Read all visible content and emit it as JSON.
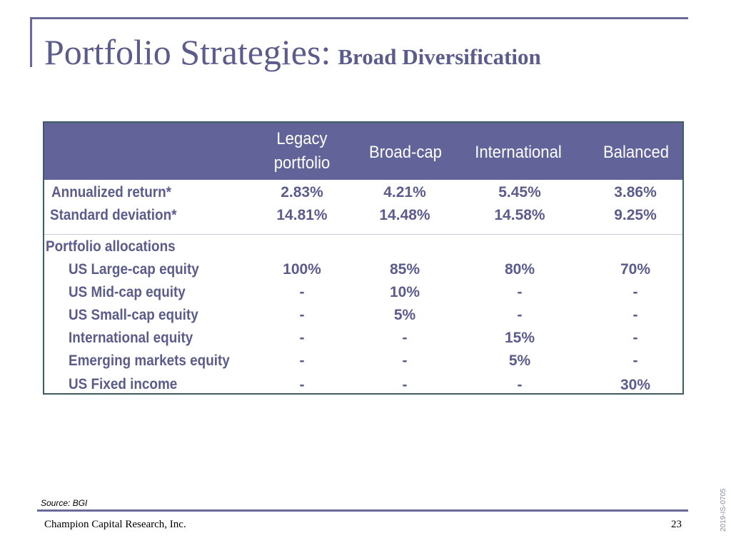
{
  "title": {
    "main": "Portfolio Strategies:",
    "sub": "Broad Diversification"
  },
  "table": {
    "columns": [
      "Legacy portfolio",
      "Broad-cap",
      "International",
      "Balanced"
    ],
    "stats": [
      {
        "label": "Annualized return*",
        "values": [
          "2.83%",
          "4.21%",
          "5.45%",
          "3.86%"
        ]
      },
      {
        "label": "Standard deviation*",
        "values": [
          "14.81%",
          "14.48%",
          "14.58%",
          "9.25%"
        ]
      }
    ],
    "section_label": "Portfolio allocations",
    "allocations": [
      {
        "label": "US Large-cap equity",
        "values": [
          "100%",
          "85%",
          "80%",
          "70%"
        ]
      },
      {
        "label": "US Mid-cap equity",
        "values": [
          "-",
          "10%",
          "-",
          "-"
        ]
      },
      {
        "label": "US Small-cap equity",
        "values": [
          "-",
          "5%",
          "-",
          "-"
        ]
      },
      {
        "label": "International equity",
        "values": [
          "-",
          "-",
          "15%",
          "-"
        ]
      },
      {
        "label": "Emerging markets equity",
        "values": [
          "-",
          "-",
          "5%",
          "-"
        ]
      },
      {
        "label": "US Fixed income",
        "values": [
          "-",
          "-",
          "-",
          "30%"
        ]
      }
    ]
  },
  "source": "Source: BGI",
  "footer": {
    "company": "Champion Capital Research, Inc.",
    "page": "23"
  },
  "doc_id": "2019-IS-0705",
  "colors": {
    "header_bg": "#616399",
    "text": "#5b5b8c",
    "rule": "#6a6a9a"
  }
}
